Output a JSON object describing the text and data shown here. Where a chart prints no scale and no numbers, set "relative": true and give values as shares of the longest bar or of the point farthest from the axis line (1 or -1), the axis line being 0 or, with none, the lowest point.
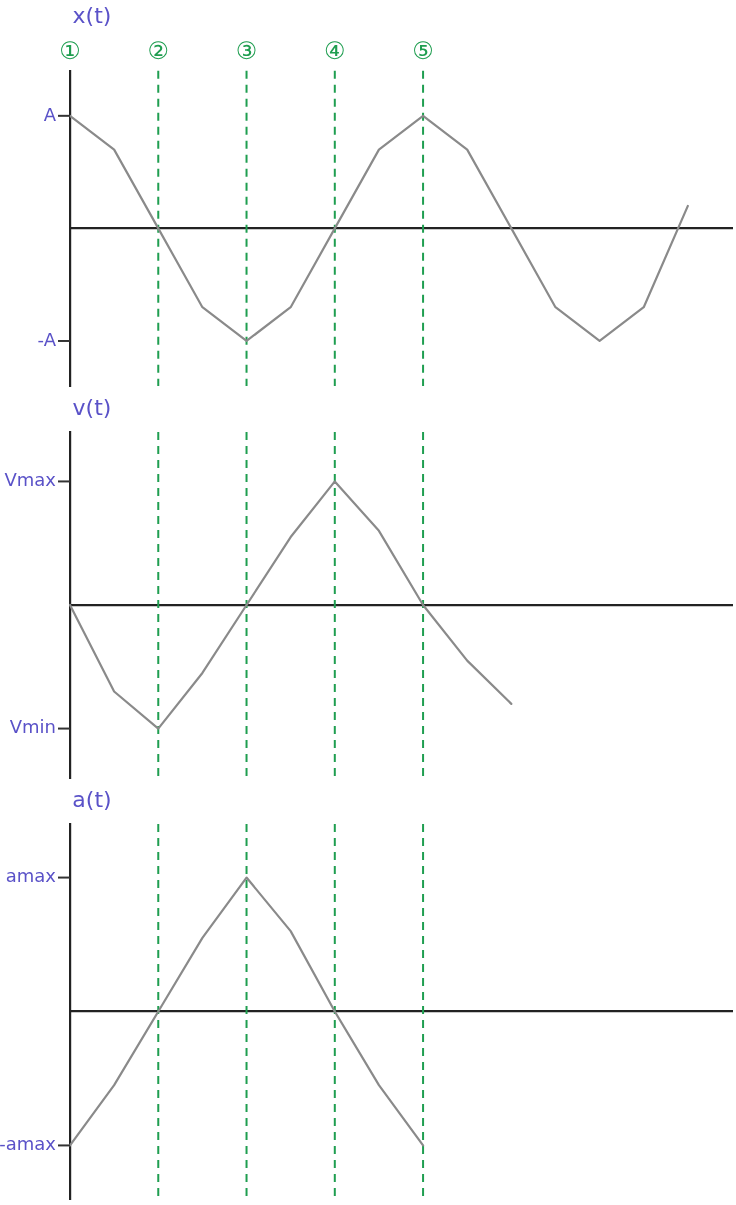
{
  "chart_data": [
    {
      "type": "line",
      "relative": true,
      "ylabel": "x(t)",
      "categories": [
        "①",
        null,
        "②",
        null,
        "③",
        null,
        "④",
        null,
        "⑤",
        null,
        null,
        null,
        null,
        null,
        null,
        null
      ],
      "tick_labels": "x",
      "grid": false,
      "legend": false,
      "marker": "none",
      "annotations": [
        "A",
        "-A"
      ],
      "series": [
        {
          "color": "#8a8a8a",
          "values": [
            1,
            0.7,
            0,
            -0.7,
            -1,
            -0.7,
            0,
            0.7,
            1,
            0.7,
            0,
            -0.7,
            -1,
            -0.7,
            0.2,
            null
          ]
        }
      ],
      "ref_lines": [
        {
          "axis": "x",
          "value": "②",
          "color": "#1f9e50",
          "line_style": "dashed"
        },
        {
          "axis": "x",
          "value": "③",
          "color": "#1f9e50",
          "line_style": "dashed"
        },
        {
          "axis": "x",
          "value": "④",
          "color": "#1f9e50",
          "line_style": "dashed"
        },
        {
          "axis": "x",
          "value": "⑤",
          "color": "#1f9e50",
          "line_style": "dashed"
        }
      ]
    },
    {
      "type": "line",
      "relative": true,
      "ylabel": "v(t)",
      "categories": [
        "①",
        null,
        "②",
        null,
        "③",
        null,
        "④",
        null,
        "⑤",
        null,
        null,
        null,
        null,
        null,
        null,
        null
      ],
      "tick_labels": false,
      "grid": false,
      "legend": false,
      "marker": "none",
      "annotations": [
        "Vmax",
        "Vmin"
      ],
      "series": [
        {
          "color": "#8a8a8a",
          "values": [
            0,
            -0.7,
            -1,
            -0.55,
            0,
            0.55,
            1,
            0.6,
            0,
            -0.45,
            -0.8,
            null,
            null,
            null,
            null,
            null
          ]
        }
      ],
      "ref_lines": [
        {
          "axis": "x",
          "value": "②",
          "color": "#1f9e50",
          "line_style": "dashed"
        },
        {
          "axis": "x",
          "value": "③",
          "color": "#1f9e50",
          "line_style": "dashed"
        },
        {
          "axis": "x",
          "value": "④",
          "color": "#1f9e50",
          "line_style": "dashed"
        },
        {
          "axis": "x",
          "value": "⑤",
          "color": "#1f9e50",
          "line_style": "dashed"
        }
      ]
    },
    {
      "type": "line",
      "relative": true,
      "ylabel": "a(t)",
      "categories": [
        "①",
        null,
        "②",
        null,
        "③",
        null,
        "④",
        null,
        "⑤",
        null,
        null,
        null,
        null,
        null,
        null,
        null
      ],
      "tick_labels": false,
      "grid": false,
      "legend": false,
      "marker": "none",
      "annotations": [
        "amax",
        "-amax"
      ],
      "series": [
        {
          "color": "#8a8a8a",
          "values": [
            -1,
            -0.55,
            0,
            0.55,
            1,
            0.6,
            0,
            -0.55,
            -1,
            null,
            null,
            null,
            null,
            null,
            null,
            null
          ]
        }
      ],
      "ref_lines": [
        {
          "axis": "x",
          "value": "②",
          "color": "#1f9e50",
          "line_style": "dashed"
        },
        {
          "axis": "x",
          "value": "③",
          "color": "#1f9e50",
          "line_style": "dashed"
        },
        {
          "axis": "x",
          "value": "④",
          "color": "#1f9e50",
          "line_style": "dashed"
        },
        {
          "axis": "x",
          "value": "⑤",
          "color": "#1f9e50",
          "line_style": "dashed"
        }
      ]
    }
  ]
}
